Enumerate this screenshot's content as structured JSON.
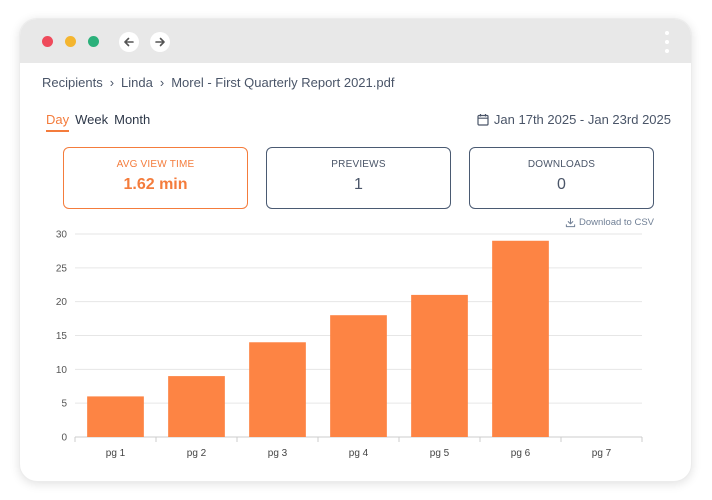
{
  "breadcrumb": {
    "items": [
      "Recipients",
      "Linda",
      "Morel - First Quarterly Report 2021.pdf"
    ],
    "separator": "›"
  },
  "tabs": [
    "Day",
    "Week",
    "Month"
  ],
  "active_tab": "Day",
  "date_range": "Jan 17th 2025 - Jan 23rd 2025",
  "stats": {
    "avg_view_time": {
      "label": "AVG VIEW TIME",
      "value": "1.62 min"
    },
    "previews": {
      "label": "PREVIEWS",
      "value": "1"
    },
    "downloads": {
      "label": "DOWNLOADS",
      "value": "0"
    }
  },
  "download_csv": "Download to CSV",
  "colors": {
    "accent": "#f47c3c",
    "bar": "#fd8444",
    "dot_red": "#ef4a5b",
    "dot_yellow": "#f4b52f",
    "dot_green": "#2bb07a"
  },
  "chart_data": {
    "type": "bar",
    "categories": [
      "pg 1",
      "pg 2",
      "pg 3",
      "pg 4",
      "pg 5",
      "pg 6",
      "pg 7"
    ],
    "values": [
      6,
      9,
      14,
      18,
      21,
      29,
      0
    ],
    "yticks": [
      0,
      5,
      10,
      15,
      20,
      25,
      30
    ],
    "ylim": [
      0,
      30
    ],
    "grid": true,
    "title": "",
    "xlabel": "",
    "ylabel": ""
  }
}
